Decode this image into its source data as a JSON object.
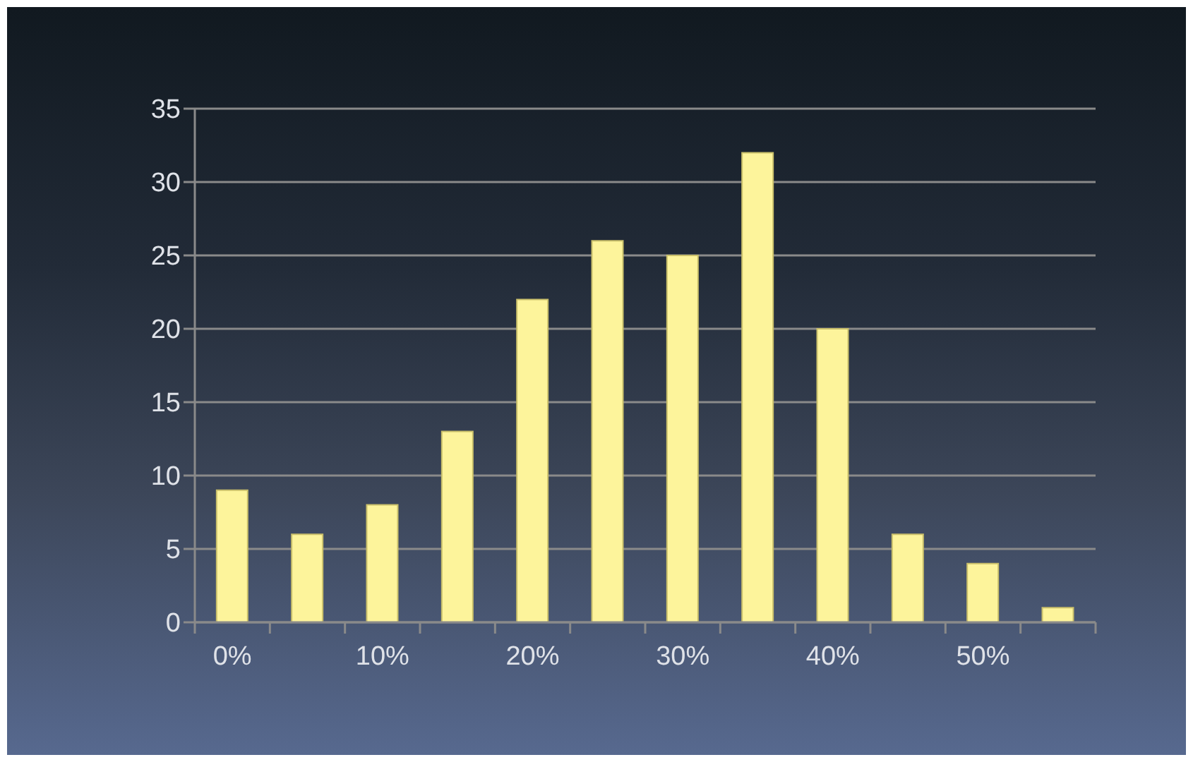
{
  "chart_data": {
    "type": "bar",
    "categories": [
      "0%",
      null,
      "10%",
      null,
      "20%",
      null,
      "30%",
      null,
      "40%",
      null,
      "50%",
      null
    ],
    "values": [
      9,
      6,
      8,
      13,
      22,
      26,
      25,
      32,
      20,
      6,
      4,
      1
    ],
    "color": "#fdf49b",
    "ylim": [
      0,
      35
    ],
    "yticks": [
      0,
      5,
      10,
      15,
      20,
      25,
      30,
      35
    ],
    "grid": "y"
  }
}
